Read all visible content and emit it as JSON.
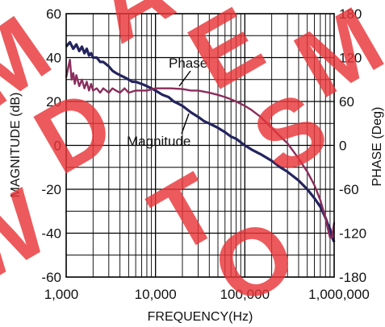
{
  "chart_data": {
    "type": "line",
    "title": "",
    "xlabel": "FREQUENCY(Hz)",
    "ylabel": "MAGNITUDE (dB)",
    "y2label": "PHASE (Deg)",
    "xscale": "log",
    "xlim": [
      1000,
      1000000
    ],
    "ylim": [
      -60,
      60
    ],
    "y2lim": [
      -180,
      180
    ],
    "grid": true,
    "x_ticks": [
      {
        "value": 1000,
        "label": "1,000"
      },
      {
        "value": 10000,
        "label": "10,000"
      },
      {
        "value": 100000,
        "label": "100,000"
      },
      {
        "value": 1000000,
        "label": "1,000,000"
      }
    ],
    "y_ticks": [
      {
        "value": 60,
        "label": "60"
      },
      {
        "value": 40,
        "label": "40"
      },
      {
        "value": 20,
        "label": "20"
      },
      {
        "value": 0,
        "label": "0"
      },
      {
        "value": -20,
        "label": "-20"
      },
      {
        "value": -40,
        "label": "-40"
      },
      {
        "value": -60,
        "label": "-60"
      }
    ],
    "y2_ticks": [
      {
        "value": 180,
        "label": "180"
      },
      {
        "value": 120,
        "label": "120"
      },
      {
        "value": 60,
        "label": "60"
      },
      {
        "value": 0,
        "label": "0"
      },
      {
        "value": -60,
        "label": "-60"
      },
      {
        "value": -120,
        "label": "-120"
      },
      {
        "value": -180,
        "label": "-180"
      }
    ],
    "series": [
      {
        "name": "Magnitude",
        "axis": "left",
        "color": "#23245e",
        "x": [
          1000,
          1100,
          1200,
          1300,
          1400,
          1500,
          1600,
          1700,
          1800,
          1900,
          2000,
          2200,
          2400,
          2600,
          2800,
          3000,
          3300,
          3600,
          4000,
          4500,
          5000,
          5500,
          6000,
          7000,
          8000,
          9000,
          10000,
          12000,
          14000,
          16000,
          18000,
          20000,
          25000,
          30000,
          35000,
          40000,
          50000,
          60000,
          70000,
          80000,
          100000,
          120000,
          150000,
          200000,
          250000,
          300000,
          400000,
          500000,
          600000,
          700000,
          800000,
          850000,
          900000,
          950000,
          1000000
        ],
        "y": [
          45,
          47,
          44,
          46,
          43,
          45,
          42,
          44,
          41,
          42,
          40,
          40,
          38,
          38,
          37,
          36,
          34,
          33,
          32,
          31,
          30,
          29,
          29,
          28,
          27,
          26,
          25,
          23,
          22,
          20,
          19,
          18,
          15,
          13,
          11,
          10,
          8,
          6,
          4,
          3,
          0,
          -2,
          -4,
          -7,
          -10,
          -12,
          -16,
          -20,
          -24,
          -28,
          -33,
          -36,
          -38,
          -42,
          -44
        ]
      },
      {
        "name": "Phase",
        "axis": "right",
        "color": "#8b2d5c",
        "x": [
          1000,
          1050,
          1100,
          1150,
          1200,
          1250,
          1300,
          1400,
          1500,
          1600,
          1700,
          1800,
          1900,
          2000,
          2200,
          2400,
          2600,
          2800,
          3000,
          3300,
          3600,
          4000,
          4500,
          5000,
          6000,
          7000,
          8000,
          10000,
          12000,
          15000,
          20000,
          25000,
          30000,
          40000,
          50000,
          60000,
          70000,
          80000,
          100000,
          120000,
          150000,
          200000,
          250000,
          300000,
          400000,
          500000,
          600000,
          700000,
          800000,
          850000,
          900000,
          950000,
          1000000
        ],
        "y": [
          93,
          105,
          117,
          90,
          99,
          84,
          96,
          81,
          90,
          78,
          87,
          75,
          84,
          75,
          78,
          72,
          78,
          75,
          72,
          78,
          75,
          72,
          78,
          72,
          75,
          75,
          75,
          78,
          78,
          78,
          77,
          75,
          75,
          72,
          69,
          66,
          63,
          60,
          54,
          48,
          39,
          24,
          12,
          3,
          -18,
          -36,
          -54,
          -75,
          -99,
          -114,
          -126,
          -126,
          -105
        ]
      }
    ],
    "annotations": [
      {
        "text": "Phase"
      },
      {
        "text": "Magnitude"
      }
    ],
    "watermark": [
      "M",
      "A",
      "D",
      "E",
      "S",
      "T",
      "O",
      "M",
      "W"
    ]
  }
}
